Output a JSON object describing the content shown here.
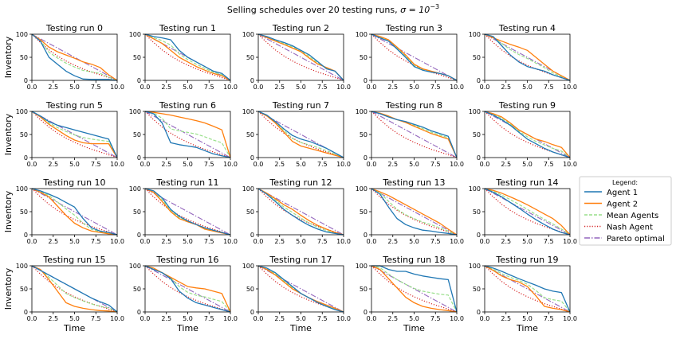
{
  "title_prefix": "Selling schedules over 20 testing runs, ",
  "title_sigma": "σ = 10",
  "title_exp": "−3",
  "ylabel": "Inventory",
  "xlabel": "Time",
  "legend_title": "Legend:",
  "colors": {
    "agent1": "#1f77b4",
    "agent2": "#ff7f0e",
    "mean": "#98df8a",
    "nash": "#d62728",
    "pareto": "#9467bd"
  },
  "chart_data": {
    "type": "line",
    "layout": "4x5 grid of subplots",
    "x": [
      0,
      1,
      2,
      3,
      4,
      5,
      6,
      7,
      8,
      9,
      10
    ],
    "xlim": [
      0,
      10
    ],
    "ylim": [
      0,
      100
    ],
    "xticks": [
      "0.0",
      "2.5",
      "5.0",
      "7.5",
      "10.0"
    ],
    "yticks": [
      "0",
      "50",
      "100"
    ],
    "legend_placement": "right",
    "series_names": [
      "Agent 1",
      "Agent 2",
      "Mean Agents",
      "Nash Agent",
      "Pareto optimal"
    ],
    "nash": [
      100,
      82,
      66,
      53,
      42,
      33,
      25,
      18,
      12,
      6,
      0
    ],
    "pareto": [
      100,
      90,
      80,
      70,
      60,
      50,
      40,
      30,
      20,
      10,
      0
    ],
    "panels": [
      {
        "title": "Testing run 0",
        "agent1": [
          100,
          85,
          50,
          35,
          20,
          10,
          3,
          2,
          2,
          2,
          0
        ],
        "agent2": [
          100,
          88,
          72,
          62,
          55,
          48,
          40,
          35,
          28,
          12,
          0
        ]
      },
      {
        "title": "Testing run 1",
        "agent1": [
          100,
          95,
          92,
          88,
          65,
          50,
          40,
          30,
          20,
          15,
          0
        ],
        "agent2": [
          100,
          90,
          80,
          65,
          50,
          40,
          30,
          22,
          15,
          10,
          0
        ]
      },
      {
        "title": "Testing run 2",
        "agent1": [
          100,
          95,
          88,
          82,
          75,
          65,
          55,
          40,
          25,
          20,
          0
        ],
        "agent2": [
          100,
          93,
          85,
          78,
          70,
          62,
          48,
          35,
          28,
          20,
          0
        ]
      },
      {
        "title": "Testing run 3",
        "agent1": [
          100,
          92,
          85,
          68,
          50,
          30,
          22,
          18,
          15,
          10,
          0
        ],
        "agent2": [
          100,
          95,
          88,
          72,
          55,
          35,
          25,
          20,
          15,
          10,
          0
        ]
      },
      {
        "title": "Testing run 4",
        "agent1": [
          100,
          95,
          75,
          55,
          40,
          30,
          25,
          20,
          12,
          6,
          0
        ],
        "agent2": [
          100,
          92,
          85,
          78,
          72,
          65,
          50,
          35,
          20,
          10,
          0
        ]
      },
      {
        "title": "Testing run 5",
        "agent1": [
          100,
          90,
          78,
          70,
          65,
          60,
          55,
          50,
          45,
          40,
          0
        ],
        "agent2": [
          100,
          88,
          72,
          60,
          48,
          38,
          32,
          30,
          30,
          30,
          0
        ]
      },
      {
        "title": "Testing run 6",
        "agent1": [
          100,
          95,
          75,
          32,
          28,
          25,
          22,
          15,
          8,
          4,
          0
        ],
        "agent2": [
          100,
          98,
          95,
          92,
          88,
          84,
          80,
          75,
          68,
          60,
          0
        ]
      },
      {
        "title": "Testing run 7",
        "agent1": [
          100,
          92,
          78,
          62,
          48,
          40,
          35,
          28,
          20,
          10,
          0
        ],
        "agent2": [
          100,
          90,
          75,
          55,
          35,
          25,
          20,
          15,
          10,
          5,
          0
        ]
      },
      {
        "title": "Testing run 8",
        "agent1": [
          100,
          95,
          88,
          82,
          78,
          72,
          66,
          58,
          52,
          46,
          0
        ],
        "agent2": [
          100,
          96,
          90,
          82,
          76,
          68,
          60,
          52,
          46,
          40,
          0
        ]
      },
      {
        "title": "Testing run 9",
        "agent1": [
          100,
          92,
          82,
          70,
          55,
          40,
          30,
          20,
          12,
          6,
          0
        ],
        "agent2": [
          100,
          95,
          88,
          75,
          60,
          50,
          40,
          35,
          28,
          22,
          0
        ]
      },
      {
        "title": "Testing run 10",
        "agent1": [
          100,
          95,
          88,
          80,
          70,
          60,
          35,
          15,
          8,
          5,
          0
        ],
        "agent2": [
          100,
          92,
          82,
          62,
          42,
          25,
          15,
          8,
          5,
          2,
          0
        ]
      },
      {
        "title": "Testing run 11",
        "agent1": [
          100,
          95,
          80,
          55,
          40,
          30,
          22,
          15,
          10,
          5,
          0
        ],
        "agent2": [
          100,
          92,
          72,
          50,
          35,
          28,
          22,
          12,
          8,
          4,
          0
        ]
      },
      {
        "title": "Testing run 12",
        "agent1": [
          100,
          88,
          72,
          55,
          42,
          30,
          20,
          12,
          6,
          3,
          0
        ],
        "agent2": [
          100,
          90,
          78,
          65,
          55,
          42,
          30,
          20,
          12,
          5,
          0
        ]
      },
      {
        "title": "Testing run 13",
        "agent1": [
          100,
          88,
          60,
          35,
          22,
          15,
          10,
          8,
          5,
          3,
          0
        ],
        "agent2": [
          100,
          93,
          85,
          75,
          65,
          55,
          45,
          35,
          25,
          12,
          0
        ]
      },
      {
        "title": "Testing run 14",
        "agent1": [
          100,
          92,
          82,
          70,
          58,
          45,
          33,
          22,
          12,
          5,
          0
        ],
        "agent2": [
          100,
          96,
          90,
          82,
          74,
          65,
          55,
          45,
          35,
          20,
          0
        ]
      },
      {
        "title": "Testing run 15",
        "agent1": [
          100,
          90,
          80,
          70,
          60,
          50,
          40,
          30,
          22,
          15,
          0
        ],
        "agent2": [
          100,
          92,
          70,
          45,
          20,
          12,
          8,
          5,
          3,
          2,
          0
        ]
      },
      {
        "title": "Testing run 16",
        "agent1": [
          100,
          92,
          85,
          72,
          45,
          30,
          20,
          15,
          10,
          5,
          0
        ],
        "agent2": [
          100,
          95,
          85,
          75,
          65,
          55,
          52,
          50,
          45,
          40,
          0
        ]
      },
      {
        "title": "Testing run 17",
        "agent1": [
          100,
          95,
          85,
          70,
          55,
          40,
          30,
          20,
          12,
          5,
          0
        ],
        "agent2": [
          100,
          92,
          80,
          65,
          50,
          40,
          30,
          22,
          15,
          8,
          0
        ]
      },
      {
        "title": "Testing run 18",
        "agent1": [
          100,
          100,
          92,
          88,
          88,
          82,
          78,
          75,
          72,
          70,
          0
        ],
        "agent2": [
          100,
          92,
          72,
          52,
          32,
          20,
          12,
          8,
          5,
          3,
          0
        ]
      },
      {
        "title": "Testing run 19",
        "agent1": [
          100,
          95,
          88,
          80,
          72,
          65,
          58,
          50,
          45,
          42,
          0
        ],
        "agent2": [
          100,
          90,
          78,
          70,
          65,
          55,
          35,
          12,
          8,
          5,
          0
        ]
      }
    ]
  }
}
